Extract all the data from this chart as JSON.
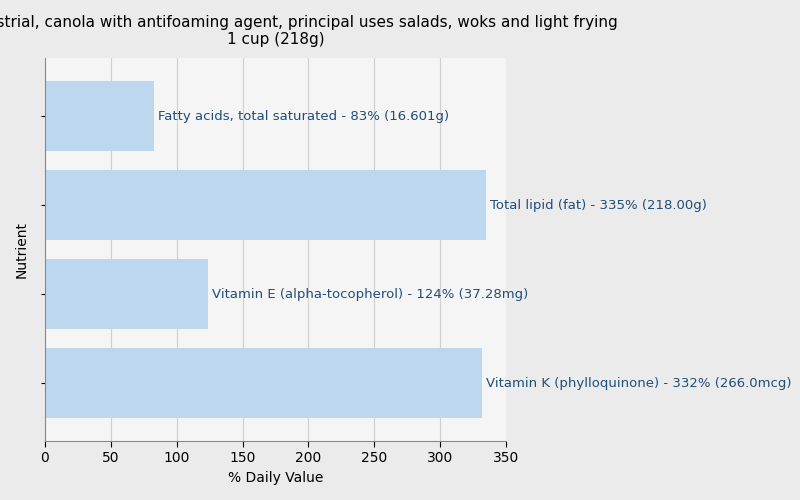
{
  "title_line1": "Oil, industrial, canola with antifoaming agent, principal uses salads, woks and light frying",
  "title_line2": "1 cup (218g)",
  "xlabel": "% Daily Value",
  "ylabel": "Nutrient",
  "background_color": "#ebebeb",
  "plot_bg_color": "#f5f5f5",
  "bar_color": "#bdd7ee",
  "bars": [
    {
      "label": "Fatty acids, total saturated - 83% (16.601g)",
      "value": 83
    },
    {
      "label": "Total lipid (fat) - 335% (218.00g)",
      "value": 335
    },
    {
      "label": "Vitamin E (alpha-tocopherol) - 124% (37.28mg)",
      "value": 124
    },
    {
      "label": "Vitamin K (phylloquinone) - 332% (266.0mcg)",
      "value": 332
    }
  ],
  "xlim": [
    0,
    350
  ],
  "xticks": [
    0,
    50,
    100,
    150,
    200,
    250,
    300,
    350
  ],
  "title_fontsize": 11,
  "label_fontsize": 9.5,
  "axis_label_fontsize": 10,
  "tick_fontsize": 10,
  "bar_height": 0.78,
  "text_color": "#1f4e79",
  "grid_color": "#d0d0d0",
  "spine_color": "#888888"
}
